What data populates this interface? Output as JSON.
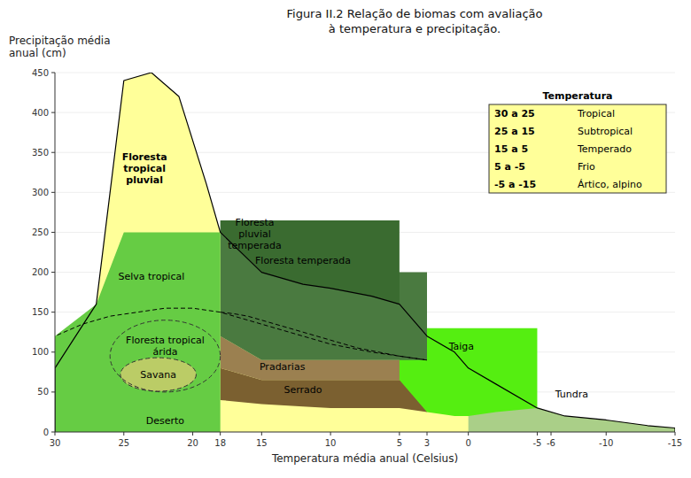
{
  "chart_data": {
    "type": "area",
    "title": "Figura II.2 Relação de biomas com avaliação\nà temperatura e precipitação.",
    "x_label": "Temperatura média anual (Celsius)",
    "y_label": "Precipitação média\nanual (cm)",
    "xlim": [
      30,
      -15
    ],
    "ylim": [
      0,
      450
    ],
    "xticks": [
      30,
      25,
      20,
      18,
      15,
      10,
      5,
      3,
      0,
      -5,
      -6,
      -10,
      -15
    ],
    "yticks": [
      0,
      50,
      100,
      150,
      200,
      250,
      300,
      350,
      400,
      450
    ],
    "series": [
      {
        "color": "#FFFF99",
        "x": [
          30,
          27,
          25,
          23,
          21,
          19,
          18,
          15,
          12,
          10,
          7,
          5,
          3,
          1,
          0,
          -2,
          -5,
          -7,
          -10,
          -13,
          -15,
          -15,
          30
        ],
        "values": [
          80,
          160,
          440,
          450,
          420,
          310,
          250,
          200,
          185,
          180,
          170,
          160,
          120,
          100,
          80,
          60,
          30,
          20,
          15,
          8,
          5,
          0,
          0
        ]
      },
      {
        "color": "#AACF88",
        "x": [
          0,
          -2,
          -5,
          -7,
          -10,
          -13,
          -15,
          -15,
          -13,
          -10,
          -7,
          -5,
          -2,
          0
        ],
        "values": [
          80,
          60,
          30,
          20,
          15,
          8,
          5,
          0,
          0,
          0,
          0,
          0,
          0,
          0
        ]
      },
      {
        "color": "#7B6030",
        "x": [
          18,
          15,
          12,
          10,
          7,
          5,
          3,
          3,
          5,
          7,
          10,
          12,
          15,
          18
        ],
        "values": [
          40,
          35,
          32,
          30,
          30,
          30,
          25,
          65,
          65,
          65,
          65,
          65,
          65,
          80
        ]
      },
      {
        "color": "#9B8050",
        "x": [
          18,
          15,
          12,
          10,
          7,
          5,
          3,
          3,
          5,
          7,
          10,
          12,
          15,
          18
        ],
        "values": [
          80,
          65,
          65,
          65,
          65,
          65,
          65,
          90,
          90,
          90,
          90,
          90,
          90,
          120
        ]
      },
      {
        "color": "#55EE11",
        "x": [
          5,
          3,
          1,
          0,
          -2,
          -5,
          -5,
          -2,
          0,
          1,
          3,
          5
        ],
        "values": [
          65,
          25,
          20,
          20,
          25,
          30,
          130,
          130,
          130,
          130,
          130,
          130
        ]
      },
      {
        "color": "#4A7A40",
        "x": [
          18,
          15,
          12,
          10,
          7,
          5,
          3,
          3,
          5,
          7,
          10,
          12,
          15,
          18
        ],
        "values": [
          120,
          90,
          90,
          90,
          90,
          90,
          90,
          200,
          200,
          200,
          200,
          200,
          200,
          250
        ]
      },
      {
        "color": "#3A6B30",
        "x": [
          18,
          15,
          12,
          10,
          7,
          5,
          5,
          7,
          10,
          12,
          15,
          18
        ],
        "values": [
          250,
          200,
          185,
          180,
          170,
          160,
          265,
          265,
          265,
          265,
          265,
          265
        ]
      },
      {
        "color": "#66CC44",
        "x": [
          30,
          27,
          25,
          23,
          21,
          19,
          18,
          18,
          19,
          21,
          23,
          25,
          27,
          30
        ],
        "values": [
          0,
          0,
          0,
          0,
          0,
          0,
          0,
          250,
          250,
          250,
          250,
          250,
          160,
          120
        ]
      },
      {
        "color": "#228B22",
        "x": [
          30,
          27,
          25,
          23,
          21,
          19,
          18,
          18,
          19,
          21,
          23,
          25,
          27,
          30
        ],
        "values": [
          120,
          160,
          440,
          450,
          420,
          310,
          250,
          250,
          310,
          420,
          450,
          440,
          160,
          120
        ]
      }
    ],
    "ellipses": [
      {
        "x": 22.5,
        "y": 72,
        "width": 5.5,
        "height": 42,
        "color": "#BBCC66",
        "line_style": "dashed"
      },
      {
        "x": 22.0,
        "y": 95,
        "width": 8.0,
        "height": 90,
        "line_style": "dashed"
      }
    ],
    "lines": [
      {
        "color": "#000000",
        "line_style": "dashed",
        "x": [
          18,
          20,
          22,
          24,
          26,
          28,
          30
        ],
        "values": [
          150,
          155,
          155,
          150,
          145,
          135,
          120
        ]
      },
      {
        "color": "#000000",
        "line_style": "dashed",
        "x": [
          3,
          5,
          7,
          10,
          12,
          15,
          18
        ],
        "values": [
          90,
          95,
          100,
          110,
          120,
          135,
          150
        ]
      },
      {
        "color": "#000000",
        "line_style": "dashed",
        "x": [
          18,
          17,
          16,
          15,
          14,
          12,
          10,
          8,
          5,
          3
        ],
        "values": [
          150,
          148,
          145,
          140,
          135,
          125,
          115,
          105,
          95,
          90
        ]
      },
      {
        "color": "#000000",
        "line_style": "solid",
        "x": [
          30,
          30,
          27,
          25,
          23,
          21,
          19,
          18,
          15,
          12,
          10,
          7,
          5,
          3,
          1,
          0,
          -2,
          -5,
          -7,
          -10,
          -13,
          -15,
          -15
        ],
        "values": [
          0,
          80,
          160,
          440,
          450,
          420,
          310,
          250,
          200,
          185,
          180,
          170,
          160,
          120,
          100,
          80,
          60,
          30,
          20,
          15,
          8,
          5,
          0
        ]
      }
    ],
    "annotations": [
      {
        "text": "Floresta\ntropical\npluvial",
        "x": 23.5,
        "y": 330,
        "bold": true
      },
      {
        "text": "Selva tropical",
        "x": 23.0,
        "y": 195
      },
      {
        "text": "Floresta\npluvial\ntemperada",
        "x": 15.5,
        "y": 248
      },
      {
        "text": "Floresta temperada",
        "x": 12.0,
        "y": 215
      },
      {
        "text": "Floresta tropical\nárida",
        "x": 22.0,
        "y": 108
      },
      {
        "text": "Savana",
        "x": 22.5,
        "y": 72
      },
      {
        "text": "Deserto",
        "x": 22.0,
        "y": 14
      },
      {
        "text": "Pradarias",
        "x": 13.5,
        "y": 82
      },
      {
        "text": "Serrado",
        "x": 12.0,
        "y": 53
      },
      {
        "text": "Taiga",
        "x": 0.5,
        "y": 108
      },
      {
        "text": "Tundra",
        "x": -7.5,
        "y": 48
      }
    ],
    "table": {
      "title": "Temperatura",
      "color": "#FFFF99",
      "rows": [
        [
          "30 a 25",
          "Tropical"
        ],
        [
          "25 a 15",
          "Subtropical"
        ],
        [
          "15 a 5",
          "Temperado"
        ],
        [
          "5 a -5",
          "Frio"
        ],
        [
          "-5 a -15",
          "Ártico, alpino"
        ]
      ]
    }
  }
}
